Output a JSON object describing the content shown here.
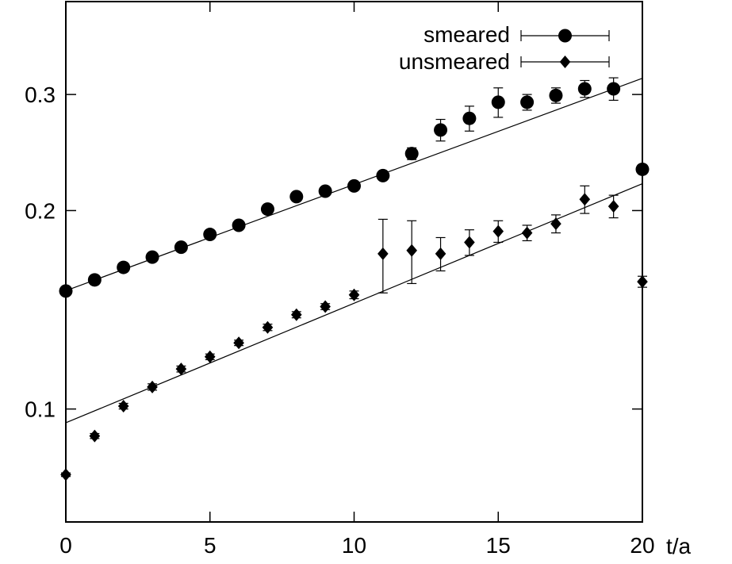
{
  "chart_data": {
    "type": "scatter",
    "title": "",
    "xlabel": "t/a",
    "ylabel": "",
    "xlim": [
      0,
      20
    ],
    "ylim": [
      0.0674,
      0.415
    ],
    "yscale": "log",
    "grid": false,
    "legend_position": "top-right",
    "x_ticks": [
      0,
      5,
      10,
      15,
      20
    ],
    "x_tick_labels": [
      "0",
      "5",
      "10",
      "15",
      "20"
    ],
    "y_ticks": [
      0.1,
      0.2,
      0.3
    ],
    "y_tick_labels": [
      "0.1",
      "0.2",
      "0.3"
    ],
    "series": [
      {
        "name": "smeared",
        "marker": "circle",
        "points": [
          {
            "x": 0,
            "y": 0.151,
            "err": 0.002
          },
          {
            "x": 1,
            "y": 0.157,
            "err": 0.002
          },
          {
            "x": 2,
            "y": 0.164,
            "err": 0.002
          },
          {
            "x": 3,
            "y": 0.17,
            "err": 0.002
          },
          {
            "x": 4,
            "y": 0.176,
            "err": 0.002
          },
          {
            "x": 5,
            "y": 0.184,
            "err": 0.002
          },
          {
            "x": 6,
            "y": 0.19,
            "err": 0.002
          },
          {
            "x": 7,
            "y": 0.201,
            "err": 0.003
          },
          {
            "x": 8,
            "y": 0.21,
            "err": 0.003
          },
          {
            "x": 9,
            "y": 0.214,
            "err": 0.003
          },
          {
            "x": 10,
            "y": 0.218,
            "err": 0.003
          },
          {
            "x": 11,
            "y": 0.226,
            "err": 0.003
          },
          {
            "x": 12,
            "y": 0.244,
            "err": 0.005
          },
          {
            "x": 13,
            "y": 0.265,
            "err": 0.01
          },
          {
            "x": 14,
            "y": 0.276,
            "err": 0.012
          },
          {
            "x": 15,
            "y": 0.292,
            "err": 0.015
          },
          {
            "x": 16,
            "y": 0.292,
            "err": 0.008
          },
          {
            "x": 17,
            "y": 0.299,
            "err": 0.008
          },
          {
            "x": 18,
            "y": 0.306,
            "err": 0.009
          },
          {
            "x": 19,
            "y": 0.306,
            "err": 0.012
          },
          {
            "x": 20,
            "y": 0.231,
            "err": 0.003
          }
        ],
        "fit_line": {
          "x": [
            0,
            20
          ],
          "y": [
            0.1512,
            0.3175
          ]
        }
      },
      {
        "name": "unsmeared",
        "marker": "diamond",
        "points": [
          {
            "x": 0,
            "y": 0.0795,
            "err": 0.0005
          },
          {
            "x": 1,
            "y": 0.091,
            "err": 0.0008
          },
          {
            "x": 2,
            "y": 0.101,
            "err": 0.001
          },
          {
            "x": 3,
            "y": 0.108,
            "err": 0.0012
          },
          {
            "x": 4,
            "y": 0.115,
            "err": 0.0012
          },
          {
            "x": 5,
            "y": 0.12,
            "err": 0.0012
          },
          {
            "x": 6,
            "y": 0.126,
            "err": 0.0012
          },
          {
            "x": 7,
            "y": 0.133,
            "err": 0.0015
          },
          {
            "x": 8,
            "y": 0.139,
            "err": 0.0015
          },
          {
            "x": 9,
            "y": 0.143,
            "err": 0.0015
          },
          {
            "x": 10,
            "y": 0.149,
            "err": 0.002
          },
          {
            "x": 11,
            "y": 0.172,
            "err": 0.022
          },
          {
            "x": 12,
            "y": 0.174,
            "err": 0.019
          },
          {
            "x": 13,
            "y": 0.172,
            "err": 0.01
          },
          {
            "x": 14,
            "y": 0.179,
            "err": 0.008
          },
          {
            "x": 15,
            "y": 0.186,
            "err": 0.007
          },
          {
            "x": 16,
            "y": 0.185,
            "err": 0.005
          },
          {
            "x": 17,
            "y": 0.191,
            "err": 0.006
          },
          {
            "x": 18,
            "y": 0.208,
            "err": 0.01
          },
          {
            "x": 19,
            "y": 0.203,
            "err": 0.008
          },
          {
            "x": 20,
            "y": 0.156,
            "err": 0.003
          }
        ],
        "fit_line": {
          "x": [
            0,
            20
          ],
          "y": [
            0.0953,
            0.2197
          ]
        }
      }
    ]
  }
}
